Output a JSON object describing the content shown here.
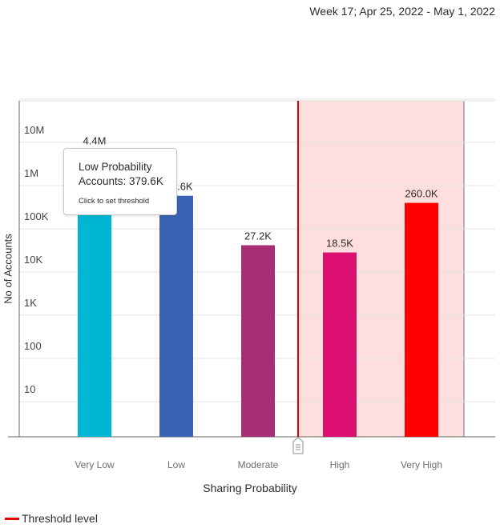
{
  "header": {
    "week_range": "Week 17; Apr 25, 2022 - May 1, 2022"
  },
  "chart_data": {
    "type": "bar",
    "xlabel": "Sharing Probability",
    "ylabel": "No of Accounts",
    "yscale": "log",
    "ylim": [
      1,
      100000000
    ],
    "y_ticks": [
      10,
      100,
      1000,
      10000,
      100000,
      1000000,
      10000000
    ],
    "y_tick_labels": [
      "10",
      "100",
      "1K",
      "10K",
      "100K",
      "1M",
      "10M"
    ],
    "categories": [
      "Very Low",
      "Low",
      "Moderate",
      "High",
      "Very High"
    ],
    "values": [
      4400000,
      379600,
      27200,
      18500,
      260000
    ],
    "data_labels": [
      "4.4M",
      "379.6K",
      "27.2K",
      "18.5K",
      "260.0K"
    ],
    "colors": [
      "#00b7d3",
      "#3a63b6",
      "#a62e75",
      "#db0f6f",
      "#ff0000"
    ],
    "threshold": {
      "position_between": [
        "Moderate",
        "High"
      ],
      "highlight_from": "High",
      "line_color": "#e60000",
      "fill_color": "#ffdede"
    },
    "grid": true,
    "legend": [
      {
        "label": "Threshold level",
        "color": "#e60000"
      }
    ],
    "legend_position": "bottom-left"
  },
  "tooltip": {
    "title_line1": "Low Probability",
    "title_line2": "Accounts: 379.6K",
    "hint": "Click to set threshold"
  },
  "icons": {
    "threshold_handle": "drag-handle-icon"
  }
}
